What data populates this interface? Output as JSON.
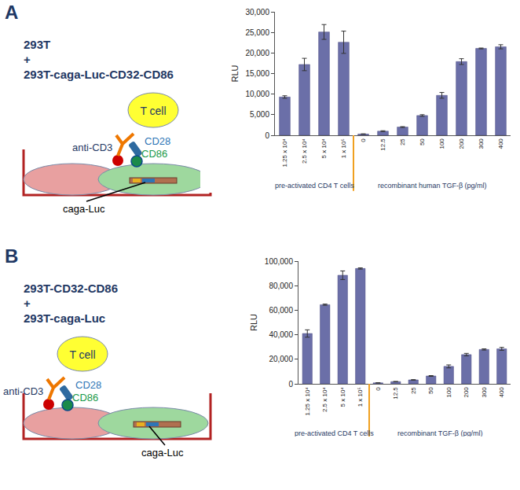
{
  "panels": [
    {
      "letter": "A",
      "title_lines": [
        "293T",
        "+",
        "293T-caga-Luc-CD32-CD86"
      ],
      "labels": {
        "t_cell": "T cell",
        "anti_cd3": "anti-CD3",
        "cd28": "CD28",
        "cd86": "CD86",
        "reporter": "caga-Luc"
      }
    },
    {
      "letter": "B",
      "title_lines": [
        "293T-CD32-CD86",
        "+",
        "293T-caga-Luc"
      ],
      "labels": {
        "t_cell": "T cell",
        "anti_cd3": "anti-CD3",
        "cd28": "CD28",
        "cd86": "CD86",
        "reporter": "caga-Luc"
      }
    }
  ],
  "chart_data": [
    {
      "type": "bar",
      "y_label": "RLU",
      "categories": [
        "1.25 x 10⁴",
        "2.5 x 10⁴",
        "5 x 10⁴",
        "1 x 10⁵",
        "0",
        "12.5",
        "25",
        "50",
        "100",
        "200",
        "300",
        "400"
      ],
      "values": [
        9300,
        17200,
        25100,
        22600,
        300,
        1000,
        2000,
        4800,
        9700,
        17900,
        21100,
        21500
      ],
      "error": [
        300,
        1500,
        1800,
        2700,
        50,
        100,
        100,
        200,
        700,
        700,
        100,
        500
      ],
      "groups": [
        {
          "label": "pre-activated CD4 T cells",
          "count": 4
        },
        {
          "label": "recombinant human TGF-β (pg/ml)",
          "count": 8
        }
      ],
      "color": "#6b6fa8",
      "grid": false,
      "ylim": [
        0,
        30000
      ],
      "yticks": [
        0,
        {
          "value": 5000,
          "label": "5,000"
        },
        {
          "value": 10000,
          "label": "10,000"
        },
        {
          "value": 15000,
          "label": "15,000"
        },
        {
          "value": 20000,
          "label": "20,000"
        },
        {
          "value": 25000,
          "label": "25,000"
        },
        {
          "value": 30000,
          "label": "30,000"
        }
      ]
    },
    {
      "type": "bar",
      "y_label": "RLU",
      "categories": [
        "1.25 x 10⁴",
        "2.5 x 10⁴",
        "5 x 10⁴",
        "1 x 10⁵",
        "0",
        "12.5",
        "25",
        "50",
        "100",
        "200",
        "300",
        "400"
      ],
      "values": [
        41000,
        64500,
        88500,
        94000,
        800,
        1800,
        3200,
        6400,
        14200,
        23800,
        28000,
        28500
      ],
      "error": [
        3000,
        500,
        3500,
        500,
        100,
        100,
        200,
        300,
        1200,
        1000,
        500,
        1200
      ],
      "groups": [
        {
          "label": "pre-activated CD4 T cells",
          "count": 4
        },
        {
          "label": "recombinant TGF-β (pg/ml)",
          "count": 8
        }
      ],
      "color": "#6b6fa8",
      "grid": false,
      "ylim": [
        0,
        100000
      ],
      "yticks": [
        0,
        {
          "value": 20000,
          "label": "20,000"
        },
        {
          "value": 40000,
          "label": "40,000"
        },
        {
          "value": 60000,
          "label": "60,000"
        },
        {
          "value": 80000,
          "label": "80,000"
        },
        {
          "value": 100000,
          "label": "100,000"
        }
      ]
    }
  ]
}
